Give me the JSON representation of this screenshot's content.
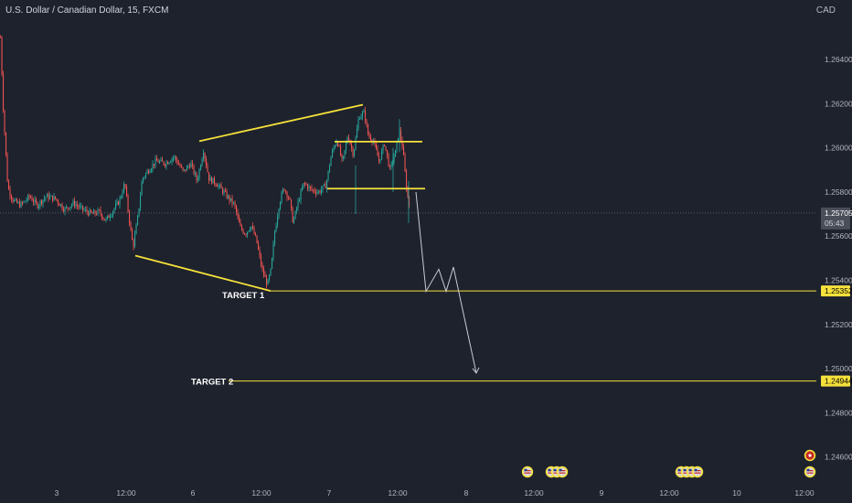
{
  "header": {
    "title": "U.S. Dollar / Canadian Dollar, 15, FXCM",
    "currency": "CAD"
  },
  "colors": {
    "background": "#1e222d",
    "up": "#26a69a",
    "down": "#ef5350",
    "drawing": "#f5e13b",
    "projection": "#c9ccd3",
    "text": "#d1d4dc",
    "label_bg": "#f5e13b"
  },
  "chart_data": {
    "type": "candlestick",
    "title": "U.S. Dollar / Canadian Dollar, 15, FXCM",
    "y_axis": {
      "ticks": [
        "1.26400",
        "1.26200",
        "1.26000",
        "1.25800",
        "1.25600",
        "1.25400",
        "1.25200",
        "1.25000",
        "1.24800",
        "1.24600"
      ],
      "tick_values": [
        1.264,
        1.262,
        1.26,
        1.258,
        1.256,
        1.254,
        1.252,
        1.25,
        1.248,
        1.246
      ],
      "range": [
        1.2452,
        1.2674
      ]
    },
    "x_axis": {
      "ticks": [
        "3",
        "12:00",
        "6",
        "12:00",
        "7",
        "12:00",
        "8",
        "12:00",
        "9",
        "12:00",
        "10",
        "12:00"
      ]
    },
    "current_price": {
      "value": 1.25705,
      "label": "1.25705",
      "countdown": "05:43"
    },
    "price_labels": [
      {
        "name": "target-1",
        "value": 1.25352,
        "label": "1.25352"
      },
      {
        "name": "target-2",
        "value": 1.24944,
        "label": "1.24944"
      }
    ],
    "annotations": [
      {
        "name": "target-1-label",
        "text": "TARGET 1",
        "value": 1.25352
      },
      {
        "name": "target-2-label",
        "text": "TARGET 2",
        "value": 1.24944
      }
    ],
    "candle_path": [
      [
        0,
        1.265
      ],
      [
        3,
        1.2618
      ],
      [
        8,
        1.2582
      ],
      [
        14,
        1.2576
      ],
      [
        22,
        1.2574
      ],
      [
        32,
        1.2578
      ],
      [
        40,
        1.2574
      ],
      [
        50,
        1.2578
      ],
      [
        60,
        1.2577
      ],
      [
        70,
        1.2572
      ],
      [
        80,
        1.2575
      ],
      [
        90,
        1.2572
      ],
      [
        100,
        1.257
      ],
      [
        108,
        1.2571
      ],
      [
        115,
        1.2567
      ],
      [
        122,
        1.2571
      ],
      [
        130,
        1.2576
      ],
      [
        136,
        1.2584
      ],
      [
        140,
        1.257
      ],
      [
        145,
        1.2555
      ],
      [
        150,
        1.2568
      ],
      [
        155,
        1.2586
      ],
      [
        162,
        1.259
      ],
      [
        170,
        1.2594
      ],
      [
        180,
        1.2593
      ],
      [
        190,
        1.2596
      ],
      [
        200,
        1.2589
      ],
      [
        208,
        1.2593
      ],
      [
        215,
        1.2585
      ],
      [
        222,
        1.2599
      ],
      [
        228,
        1.2586
      ],
      [
        236,
        1.2584
      ],
      [
        244,
        1.258
      ],
      [
        250,
        1.2577
      ],
      [
        256,
        1.2574
      ],
      [
        262,
        1.2564
      ],
      [
        268,
        1.2561
      ],
      [
        274,
        1.2565
      ],
      [
        280,
        1.2558
      ],
      [
        286,
        1.2545
      ],
      [
        292,
        1.2538
      ],
      [
        296,
        1.2545
      ],
      [
        300,
        1.2562
      ],
      [
        305,
        1.2575
      ],
      [
        310,
        1.2582
      ],
      [
        316,
        1.2577
      ],
      [
        320,
        1.2566
      ],
      [
        326,
        1.2576
      ],
      [
        332,
        1.2584
      ],
      [
        340,
        1.2581
      ],
      [
        348,
        1.258
      ],
      [
        356,
        1.2583
      ],
      [
        362,
        1.2597
      ],
      [
        368,
        1.2604
      ],
      [
        374,
        1.2593
      ],
      [
        380,
        1.2606
      ],
      [
        386,
        1.2597
      ],
      [
        392,
        1.2614
      ],
      [
        398,
        1.2616
      ],
      [
        402,
        1.2606
      ],
      [
        408,
        1.2603
      ],
      [
        414,
        1.2594
      ],
      [
        420,
        1.2602
      ],
      [
        426,
        1.259
      ],
      [
        432,
        1.2598
      ],
      [
        436,
        1.2608
      ],
      [
        440,
        1.26
      ],
      [
        444,
        1.2582
      ],
      [
        448,
        1.2571
      ]
    ],
    "trendlines": [
      {
        "name": "upper-trendline",
        "from": [
          218,
          1.2603
        ],
        "to": [
          397,
          1.26195
        ]
      },
      {
        "name": "lower-trendline",
        "from": [
          148,
          1.25512
        ],
        "to": [
          296,
          1.25352
        ]
      },
      {
        "name": "box-top-line",
        "from": [
          366,
          1.26028
        ],
        "to": [
          462,
          1.26028
        ]
      },
      {
        "name": "box-bottom-line",
        "from": [
          358,
          1.25815
        ],
        "to": [
          465,
          1.25815
        ]
      },
      {
        "name": "target-1-line",
        "from": [
          296,
          1.25352
        ],
        "to": [
          893,
          1.25352
        ]
      },
      {
        "name": "target-2-line",
        "from": [
          250,
          1.24944
        ],
        "to": [
          893,
          1.24944
        ]
      }
    ],
    "projection_path": [
      [
        455,
        1.258
      ],
      [
        466,
        1.2535
      ],
      [
        480,
        1.2545
      ],
      [
        488,
        1.2535
      ],
      [
        496,
        1.2546
      ],
      [
        521,
        1.2498
      ]
    ],
    "event_icons": [
      {
        "x": 577,
        "count": 1
      },
      {
        "x": 603,
        "count": 3
      },
      {
        "x": 745,
        "count": 4
      },
      {
        "x": 886,
        "count": 2
      }
    ]
  }
}
